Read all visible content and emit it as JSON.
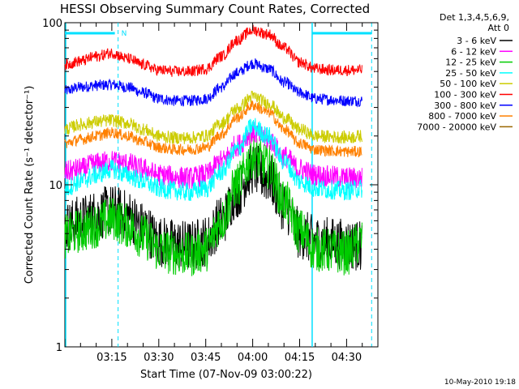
{
  "chart_data": {
    "type": "line",
    "title": "HESSI Observing Summary Count Rates, Corrected",
    "xlabel": "Start Time (07-Nov-09 03:00:22)",
    "ylabel": "Corrected Count Rate (s⁻¹ detector⁻¹)",
    "y_scale": "log",
    "ylim": [
      1,
      100
    ],
    "xlim": [
      "03:00",
      "04:40"
    ],
    "y_ticks": [
      {
        "value": 1,
        "label": "1"
      },
      {
        "value": 10,
        "label": "10"
      },
      {
        "value": 100,
        "label": "100"
      }
    ],
    "x_ticks": [
      {
        "value": "03:15",
        "label": "03:15"
      },
      {
        "value": "03:30",
        "label": "03:30"
      },
      {
        "value": "03:45",
        "label": "03:45"
      },
      {
        "value": "04:00",
        "label": "04:00"
      },
      {
        "value": "04:15",
        "label": "04:15"
      },
      {
        "value": "04:30",
        "label": "04:30"
      }
    ],
    "grid": false,
    "legend": {
      "placement": "right",
      "header_line1": "Det 1,3,4,5,6,9,",
      "header_line2": "Att 0"
    },
    "series": [
      {
        "name": "3 - 6 keV",
        "color": "#000000",
        "x": [
          "03:00",
          "03:05",
          "03:10",
          "03:15",
          "03:20",
          "03:25",
          "03:30",
          "03:35",
          "03:40",
          "03:45",
          "03:50",
          "03:55",
          "04:00",
          "04:05",
          "04:10",
          "04:15",
          "04:20",
          "04:25",
          "04:30",
          "04:35"
        ],
        "y": [
          5.5,
          6,
          6.5,
          7,
          6.5,
          5.5,
          4.5,
          4.3,
          4.2,
          4.5,
          6,
          9,
          12.5,
          11,
          7.5,
          5,
          4.5,
          4.4,
          4.3,
          4.2
        ]
      },
      {
        "name": "6 - 12 keV",
        "color": "#ff00ff",
        "x": [
          "03:00",
          "03:05",
          "03:10",
          "03:15",
          "03:20",
          "03:25",
          "03:30",
          "03:35",
          "03:40",
          "03:45",
          "03:50",
          "03:55",
          "04:00",
          "04:05",
          "04:10",
          "04:15",
          "04:20",
          "04:25",
          "04:30",
          "04:35"
        ],
        "y": [
          12,
          12.5,
          13.5,
          14,
          13.5,
          12.5,
          11.5,
          11.2,
          11,
          11.5,
          14,
          17.5,
          21,
          19,
          15,
          12.5,
          11.5,
          11.2,
          11,
          11
        ]
      },
      {
        "name": "12 - 25 keV",
        "color": "#00cc00",
        "x": [
          "03:00",
          "03:05",
          "03:10",
          "03:15",
          "03:20",
          "03:25",
          "03:30",
          "03:35",
          "03:40",
          "03:45",
          "03:50",
          "03:55",
          "04:00",
          "04:05",
          "04:10",
          "04:15",
          "04:20",
          "04:25",
          "04:30",
          "04:35"
        ],
        "y": [
          4.8,
          5.2,
          5.6,
          6.2,
          5.6,
          4.8,
          4,
          3.8,
          3.7,
          4,
          6,
          10,
          15,
          13,
          8,
          5.2,
          4,
          3.9,
          3.8,
          4.5
        ]
      },
      {
        "name": "25 - 50 keV",
        "color": "#00ffff",
        "x": [
          "03:00",
          "03:05",
          "03:10",
          "03:15",
          "03:20",
          "03:25",
          "03:30",
          "03:35",
          "03:40",
          "03:45",
          "03:50",
          "03:55",
          "04:00",
          "04:05",
          "04:10",
          "04:15",
          "04:20",
          "04:25",
          "04:30",
          "04:35"
        ],
        "y": [
          9.5,
          10.5,
          11.5,
          12.5,
          11.5,
          10.5,
          9.5,
          9.2,
          9,
          9.5,
          12,
          16.5,
          23,
          20,
          14,
          10.5,
          9.5,
          9.3,
          9.2,
          9.5
        ]
      },
      {
        "name": "50 - 100 keV",
        "color": "#cccc00",
        "x": [
          "03:00",
          "03:05",
          "03:10",
          "03:15",
          "03:20",
          "03:25",
          "03:30",
          "03:35",
          "03:40",
          "03:45",
          "03:50",
          "03:55",
          "04:00",
          "04:05",
          "04:10",
          "04:15",
          "04:20",
          "04:25",
          "04:30",
          "04:35"
        ],
        "y": [
          22,
          23.5,
          24.5,
          25,
          24,
          22,
          20,
          19.5,
          19.5,
          20,
          24,
          29.5,
          35,
          32,
          26,
          22,
          20,
          19.8,
          19.6,
          20
        ]
      },
      {
        "name": "100 - 300 keV",
        "color": "#ff0000",
        "x": [
          "03:00",
          "03:05",
          "03:10",
          "03:15",
          "03:20",
          "03:25",
          "03:30",
          "03:35",
          "03:40",
          "03:45",
          "03:50",
          "03:55",
          "04:00",
          "04:05",
          "04:10",
          "04:15",
          "04:20",
          "04:25",
          "04:30",
          "04:35"
        ],
        "y": [
          55,
          58,
          62,
          65,
          60,
          55,
          51,
          50,
          50,
          52,
          62,
          78,
          90,
          85,
          70,
          57,
          52,
          51,
          51,
          51
        ]
      },
      {
        "name": "300 - 800 keV",
        "color": "#0000ff",
        "x": [
          "03:00",
          "03:05",
          "03:10",
          "03:15",
          "03:20",
          "03:25",
          "03:30",
          "03:35",
          "03:40",
          "03:45",
          "03:50",
          "03:55",
          "04:00",
          "04:05",
          "04:10",
          "04:15",
          "04:20",
          "04:25",
          "04:30",
          "04:35"
        ],
        "y": [
          38,
          40,
          41,
          41.5,
          40,
          37,
          34,
          33,
          33,
          34,
          40,
          49,
          56,
          52,
          43,
          37,
          34,
          33.5,
          33,
          33
        ]
      },
      {
        "name": "800 - 7000 keV",
        "color": "#ff8000",
        "x": [
          "03:00",
          "03:05",
          "03:10",
          "03:15",
          "03:20",
          "03:25",
          "03:30",
          "03:35",
          "03:40",
          "03:45",
          "03:50",
          "03:55",
          "04:00",
          "04:05",
          "04:10",
          "04:15",
          "04:20",
          "04:25",
          "04:30",
          "04:35"
        ],
        "y": [
          18,
          19,
          20,
          21,
          20,
          18.5,
          17,
          16.5,
          16.5,
          17,
          20.5,
          26,
          31,
          28,
          22,
          18,
          16.5,
          16.2,
          16,
          16
        ]
      },
      {
        "name": "7000 - 20000 keV",
        "color": "#996600",
        "x": [],
        "y": []
      }
    ],
    "annotations": {
      "night_marker_label": "N",
      "timestamp": "10-May-2010 19:18"
    }
  }
}
